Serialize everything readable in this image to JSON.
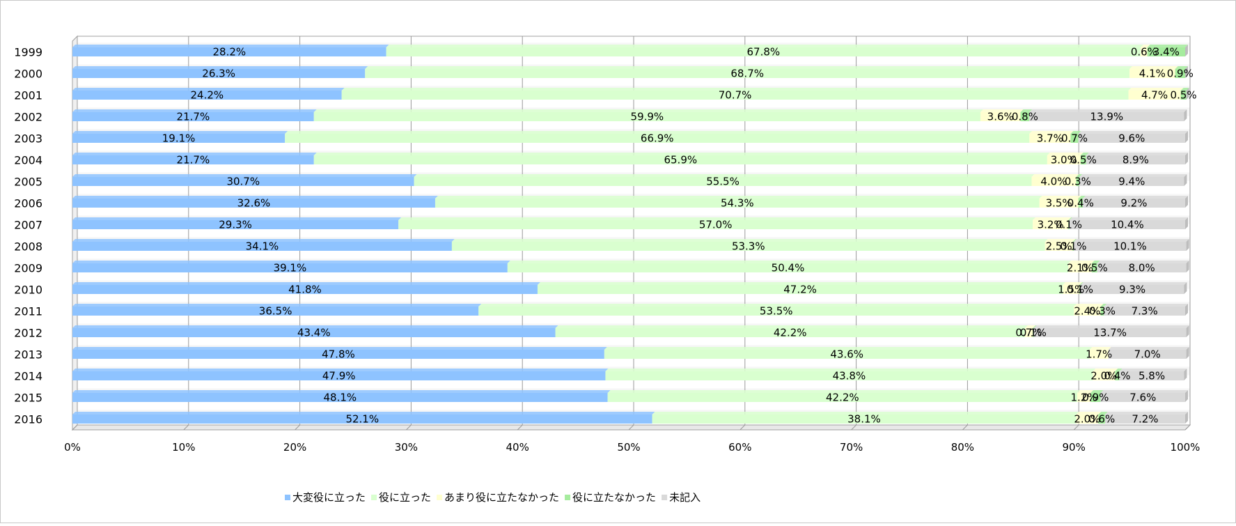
{
  "chart_data": {
    "type": "bar",
    "orientation": "horizontal",
    "stacked": true,
    "percent_stacked": true,
    "categories": [
      "1999",
      "2000",
      "2001",
      "2002",
      "2003",
      "2004",
      "2005",
      "2006",
      "2007",
      "2008",
      "2009",
      "2010",
      "2011",
      "2012",
      "2013",
      "2014",
      "2015",
      "2016"
    ],
    "series": [
      {
        "name": "大変役に立った",
        "color": "#8ec3ff",
        "values": [
          28.2,
          26.3,
          24.2,
          21.7,
          19.1,
          21.7,
          30.7,
          32.6,
          29.3,
          34.1,
          39.1,
          41.8,
          36.5,
          43.4,
          47.8,
          47.9,
          48.1,
          52.1
        ],
        "labels": [
          "28.2%",
          "26.3%",
          "24.2%",
          "21.7%",
          "19.1%",
          "21.7%",
          "30.7%",
          "32.6%",
          "29.3%",
          "34.1%",
          "39.1%",
          "41.8%",
          "36.5%",
          "43.4%",
          "47.8%",
          "47.9%",
          "48.1%",
          "52.1%"
        ]
      },
      {
        "name": "役に立った",
        "color": "#d9ffcf",
        "values": [
          67.8,
          68.7,
          70.7,
          59.9,
          66.9,
          65.9,
          55.5,
          54.3,
          57.0,
          53.3,
          50.4,
          47.2,
          53.5,
          42.2,
          43.6,
          43.8,
          42.2,
          38.1
        ],
        "labels": [
          "67.8%",
          "68.7%",
          "70.7%",
          "59.9%",
          "66.9%",
          "65.9%",
          "55.5%",
          "54.3%",
          "57.0%",
          "53.3%",
          "50.4%",
          "47.2%",
          "53.5%",
          "42.2%",
          "43.6%",
          "43.8%",
          "42.2%",
          "38.1%"
        ]
      },
      {
        "name": "あまり役に立たなかった",
        "color": "#ffffd0",
        "values": [
          0.6,
          4.1,
          4.7,
          3.6,
          3.7,
          3.0,
          4.0,
          3.5,
          3.2,
          2.5,
          2.1,
          1.5,
          2.4,
          0.7,
          1.7,
          2.0,
          1.2,
          2.0
        ],
        "labels": [
          "0.6%",
          "4.1%",
          "4.7%",
          "3.6%",
          "3.7%",
          "3.0%",
          "4.0%",
          "3.5%",
          "3.2%",
          "2.5%",
          "2.1%",
          "1.5%",
          "2.4%",
          "0.7%",
          "1.7%",
          "2.0%",
          "1.2%",
          "2.0%"
        ]
      },
      {
        "name": "役に立たなかった",
        "color": "#a6ec9e",
        "values": [
          3.4,
          0.9,
          0.5,
          0.8,
          0.7,
          0.5,
          0.3,
          0.4,
          0.1,
          0.1,
          0.5,
          0.1,
          0.3,
          0.1,
          0.0,
          0.4,
          0.9,
          0.6
        ],
        "labels": [
          "3.4%",
          "0.9%",
          "0.5%",
          "0.8%",
          "0.7%",
          "0.5%",
          "0.3%",
          "0.4%",
          "0.1%",
          "0.1%",
          "0.5%",
          "0.1%",
          "0.3%",
          "0.1%",
          "",
          "0.4%",
          "0.9%",
          "0.6%"
        ]
      },
      {
        "name": "未記入",
        "color": "#d9d9d9",
        "values": [
          0.0,
          0.0,
          0.0,
          13.9,
          9.6,
          8.9,
          9.4,
          9.2,
          10.4,
          10.1,
          8.0,
          9.3,
          7.3,
          13.7,
          7.0,
          5.8,
          7.6,
          7.2
        ],
        "labels": [
          "",
          "",
          "",
          "13.9%",
          "9.6%",
          "8.9%",
          "9.4%",
          "9.2%",
          "10.4%",
          "10.1%",
          "8.0%",
          "9.3%",
          "7.3%",
          "13.7%",
          "7.0%",
          "5.8%",
          "7.6%",
          "7.2%"
        ]
      }
    ],
    "xaxis": {
      "min": 0,
      "max": 100,
      "ticks": [
        0,
        10,
        20,
        30,
        40,
        50,
        60,
        70,
        80,
        90,
        100
      ],
      "tick_labels": [
        "0%",
        "10%",
        "20%",
        "30%",
        "40%",
        "50%",
        "60%",
        "70%",
        "80%",
        "90%",
        "100%"
      ]
    },
    "grid": true,
    "legend_position": "bottom"
  }
}
